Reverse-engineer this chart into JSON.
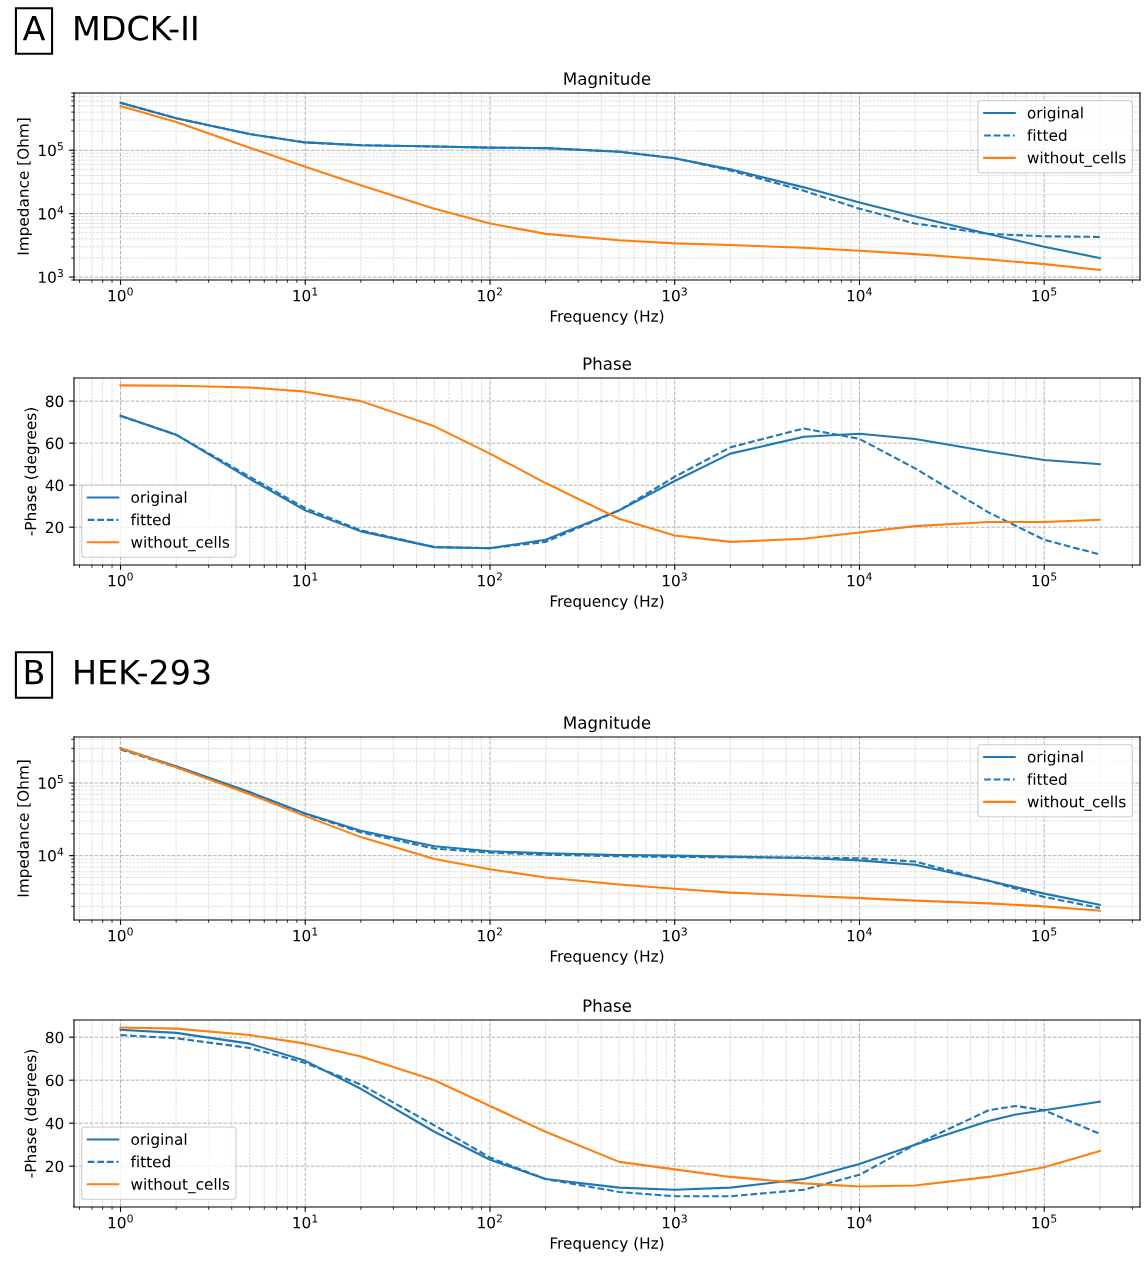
{
  "chart_data": [
    {
      "type": "line",
      "title": "Magnitude",
      "annotations": [
        "A",
        "MDCK-II"
      ],
      "xlabel": "Frequency (Hz)",
      "ylabel": "Impedance [Ohm]",
      "log": "xy",
      "grid": true,
      "legend": "top right",
      "x": [
        1,
        2,
        5,
        10,
        20,
        50,
        100,
        200,
        500,
        1000,
        2000,
        5000,
        10000,
        20000,
        50000,
        100000,
        200000
      ],
      "xlim": [
        0.56,
        330000
      ],
      "xticks": [
        {
          "value": 1,
          "label": "10$^{0}$"
        },
        {
          "value": 10,
          "label": "10$^{1}$"
        },
        {
          "value": 100,
          "label": "10$^{2}$"
        },
        {
          "value": 1000,
          "label": "10$^{3}$"
        },
        {
          "value": 10000,
          "label": "10$^{4}$"
        },
        {
          "value": 100000,
          "label": "10$^{5}$"
        }
      ],
      "ylim": [
        900,
        800000
      ],
      "yticks": [
        {
          "value": 1000,
          "label": "10$^{3}$"
        },
        {
          "value": 10000,
          "label": "10$^{4}$"
        },
        {
          "value": 100000,
          "label": "10$^{5}$"
        }
      ],
      "series": [
        {
          "name": "original",
          "color": "#1f77b4",
          "line_style": "solid",
          "values": [
            560000,
            320000,
            180000,
            133000,
            120000,
            115000,
            110000,
            108000,
            95000,
            75000,
            50000,
            26000,
            15000,
            9000,
            4800,
            3000,
            2000
          ]
        },
        {
          "name": "fitted",
          "color": "#1f77b4",
          "line_style": "dashed",
          "values": [
            560000,
            320000,
            180000,
            133000,
            120000,
            115000,
            110000,
            108000,
            95000,
            75000,
            48000,
            23000,
            12000,
            7000,
            4800,
            4400,
            4300
          ]
        },
        {
          "name": "without_cells",
          "color": "#ff7f0e",
          "line_style": "solid",
          "values": [
            500000,
            280000,
            110000,
            55000,
            28000,
            12000,
            7000,
            4800,
            3800,
            3400,
            3200,
            2900,
            2600,
            2300,
            1900,
            1600,
            1300
          ]
        }
      ]
    },
    {
      "type": "line",
      "title": "Phase",
      "xlabel": "Frequency (Hz)",
      "ylabel": "-Phase (degrees)",
      "log": "x",
      "grid": true,
      "legend": "bottom left",
      "x": [
        1,
        2,
        5,
        10,
        20,
        50,
        100,
        200,
        500,
        1000,
        2000,
        5000,
        10000,
        20000,
        50000,
        100000,
        200000
      ],
      "xlim": [
        0.56,
        330000
      ],
      "xticks": [
        {
          "value": 1,
          "label": "10$^{0}$"
        },
        {
          "value": 10,
          "label": "10$^{1}$"
        },
        {
          "value": 100,
          "label": "10$^{2}$"
        },
        {
          "value": 1000,
          "label": "10$^{3}$"
        },
        {
          "value": 10000,
          "label": "10$^{4}$"
        },
        {
          "value": 100000,
          "label": "10$^{5}$"
        }
      ],
      "ylim": [
        2,
        91
      ],
      "yticks": [
        20,
        40,
        60,
        80
      ],
      "series": [
        {
          "name": "original",
          "color": "#1f77b4",
          "line_style": "solid",
          "values": [
            73,
            64,
            43,
            28,
            18,
            10.5,
            10,
            14,
            28,
            42,
            55,
            63,
            64.5,
            62,
            56,
            52,
            50
          ]
        },
        {
          "name": "fitted",
          "color": "#1f77b4",
          "line_style": "dashed",
          "values": [
            73,
            64,
            44,
            29,
            18.5,
            10.5,
            10,
            13,
            28,
            44,
            58,
            67,
            62,
            48,
            27,
            14,
            7
          ]
        },
        {
          "name": "without_cells",
          "color": "#ff7f0e",
          "line_style": "solid",
          "values": [
            87.5,
            87.3,
            86.5,
            84.5,
            80,
            68,
            55,
            41,
            24,
            16,
            13,
            14.5,
            17.5,
            20.5,
            22.5,
            22.5,
            23.5
          ]
        }
      ]
    },
    {
      "type": "line",
      "title": "Magnitude",
      "annotations": [
        "B",
        "HEK-293"
      ],
      "xlabel": "Frequency (Hz)",
      "ylabel": "Impedance [Ohm]",
      "log": "xy",
      "grid": true,
      "legend": "top right",
      "x": [
        1,
        2,
        5,
        10,
        20,
        50,
        100,
        200,
        500,
        1000,
        2000,
        5000,
        10000,
        20000,
        50000,
        100000,
        200000
      ],
      "xlim": [
        0.56,
        330000
      ],
      "xticks": [
        {
          "value": 1,
          "label": "10$^{0}$"
        },
        {
          "value": 10,
          "label": "10$^{1}$"
        },
        {
          "value": 100,
          "label": "10$^{2}$"
        },
        {
          "value": 1000,
          "label": "10$^{3}$"
        },
        {
          "value": 10000,
          "label": "10$^{4}$"
        },
        {
          "value": 100000,
          "label": "10$^{5}$"
        }
      ],
      "ylim": [
        1300,
        430000
      ],
      "yticks": [
        {
          "value": 10000,
          "label": "10$^{4}$"
        },
        {
          "value": 100000,
          "label": "10$^{5}$"
        }
      ],
      "series": [
        {
          "name": "original",
          "color": "#1f77b4",
          "line_style": "solid",
          "values": [
            300000,
            170000,
            75000,
            38000,
            22000,
            13500,
            11500,
            10800,
            10200,
            10000,
            9700,
            9300,
            8600,
            7500,
            4500,
            3000,
            2100
          ]
        },
        {
          "name": "fitted",
          "color": "#1f77b4",
          "line_style": "dashed",
          "values": [
            290000,
            165000,
            74000,
            37500,
            21000,
            12500,
            11000,
            10300,
            9800,
            9600,
            9500,
            9400,
            9200,
            8300,
            4500,
            2700,
            1900
          ]
        },
        {
          "name": "without_cells",
          "color": "#ff7f0e",
          "line_style": "solid",
          "values": [
            300000,
            165000,
            70000,
            35000,
            18000,
            9000,
            6500,
            5000,
            4000,
            3500,
            3100,
            2800,
            2600,
            2400,
            2200,
            2000,
            1750
          ]
        }
      ]
    },
    {
      "type": "line",
      "title": "Phase",
      "xlabel": "Frequency (Hz)",
      "ylabel": "-Phase (degrees)",
      "log": "x",
      "grid": true,
      "legend": "bottom left",
      "x": [
        1,
        2,
        5,
        10,
        20,
        50,
        100,
        200,
        500,
        1000,
        2000,
        5000,
        10000,
        20000,
        50000,
        70000,
        100000,
        200000
      ],
      "xlim": [
        0.56,
        330000
      ],
      "xticks": [
        {
          "value": 1,
          "label": "10$^{0}$"
        },
        {
          "value": 10,
          "label": "10$^{1}$"
        },
        {
          "value": 100,
          "label": "10$^{2}$"
        },
        {
          "value": 1000,
          "label": "10$^{3}$"
        },
        {
          "value": 10000,
          "label": "10$^{4}$"
        },
        {
          "value": 100000,
          "label": "10$^{5}$"
        }
      ],
      "ylim": [
        1,
        88
      ],
      "yticks": [
        20,
        40,
        60,
        80
      ],
      "series": [
        {
          "name": "original",
          "color": "#1f77b4",
          "line_style": "solid",
          "values": [
            83.5,
            82,
            77,
            69,
            56,
            36,
            23,
            14,
            10,
            9,
            10,
            14,
            21,
            30,
            41,
            44,
            46,
            50
          ]
        },
        {
          "name": "fitted",
          "color": "#1f77b4",
          "line_style": "dashed",
          "values": [
            81,
            79.5,
            75,
            68,
            58,
            39,
            24,
            14,
            8,
            6,
            6,
            9,
            16,
            30,
            46,
            48,
            46,
            35
          ]
        },
        {
          "name": "without_cells",
          "color": "#ff7f0e",
          "line_style": "solid",
          "values": [
            84.5,
            84,
            81,
            77,
            71,
            60,
            48,
            36,
            22,
            18.5,
            15,
            12,
            10.5,
            11,
            15,
            17,
            19.5,
            27
          ]
        }
      ]
    }
  ]
}
